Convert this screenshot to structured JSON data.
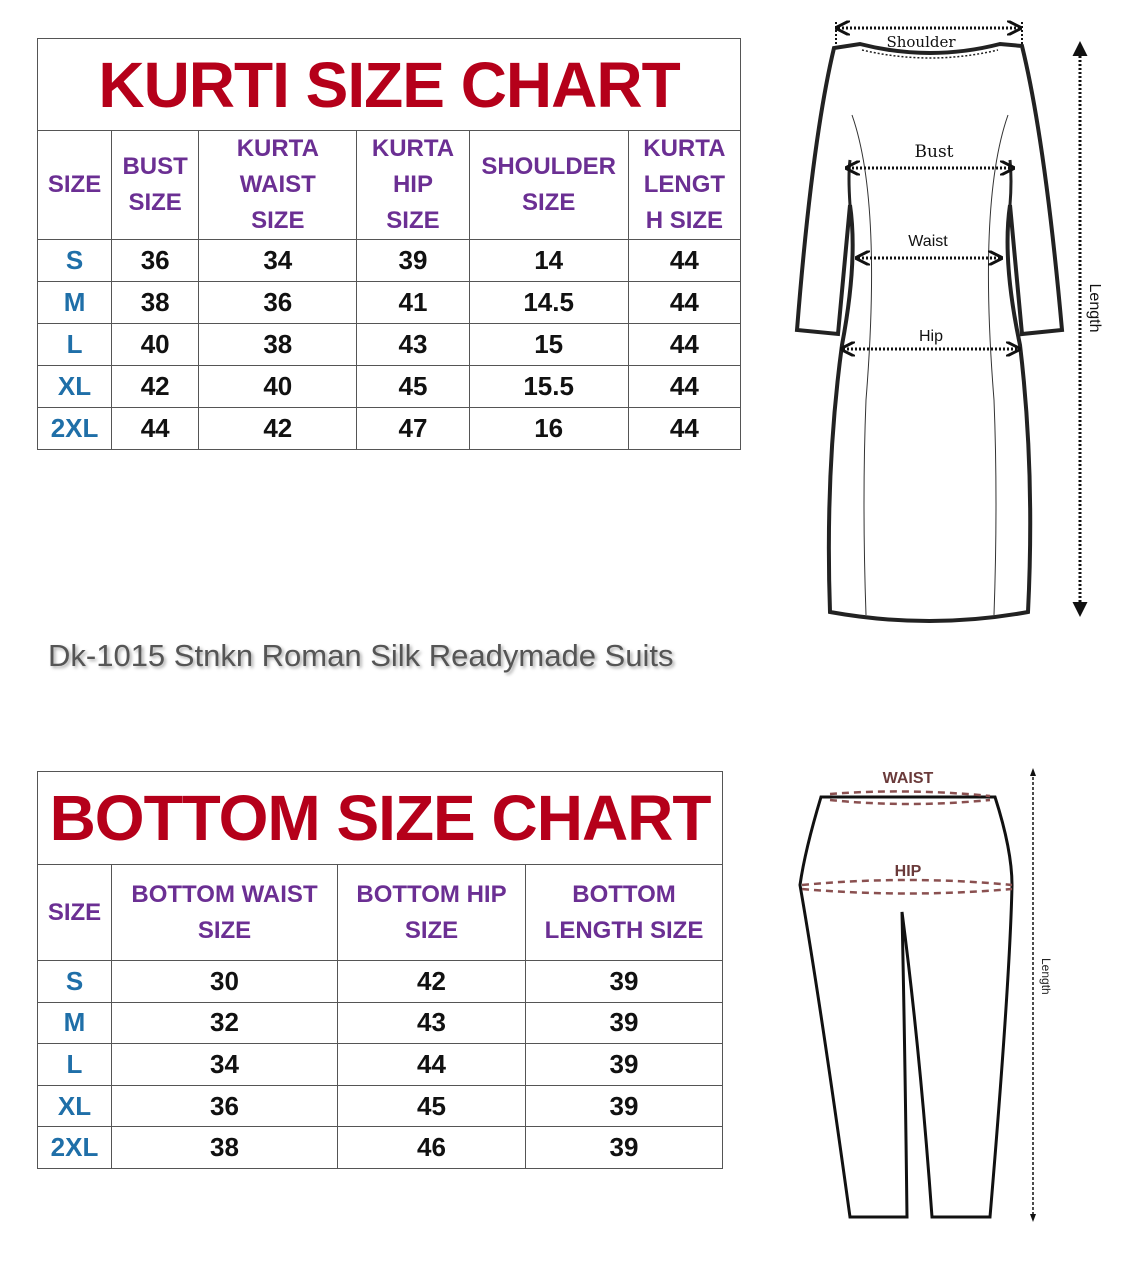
{
  "kurti_chart": {
    "title": "KURTI SIZE CHART",
    "headers": [
      "SIZE",
      "BUST\nSIZE",
      "KURTA\nWAIST\nSIZE",
      "KURTA\nHIP\nSIZE",
      "SHOULDER\nSIZE",
      "KURTA\nLENGT\nH SIZE"
    ],
    "rows": [
      [
        "S",
        "36",
        "34",
        "39",
        "14",
        "44"
      ],
      [
        "M",
        "38",
        "36",
        "41",
        "14.5",
        "44"
      ],
      [
        "L",
        "40",
        "38",
        "43",
        "15",
        "44"
      ],
      [
        "XL",
        "42",
        "40",
        "45",
        "15.5",
        "44"
      ],
      [
        "2XL",
        "44",
        "42",
        "47",
        "16",
        "44"
      ]
    ]
  },
  "kurti_diagram": {
    "shoulder_label": "Shoulder",
    "bust_label": "Bust",
    "waist_label": "Waist",
    "hip_label": "Hip",
    "length_label": "Length"
  },
  "product_name": "Dk-1015 Stnkn Roman Silk Readymade Suits",
  "bottom_chart": {
    "title": "BOTTOM SIZE CHART",
    "headers": [
      "SIZE",
      "BOTTOM WAIST\nSIZE",
      "BOTTOM HIP\nSIZE",
      "BOTTOM\nLENGTH SIZE"
    ],
    "rows": [
      [
        "S",
        "30",
        "42",
        "39"
      ],
      [
        "M",
        "32",
        "43",
        "39"
      ],
      [
        "L",
        "34",
        "44",
        "39"
      ],
      [
        "XL",
        "36",
        "45",
        "39"
      ],
      [
        "2XL",
        "38",
        "46",
        "39"
      ]
    ]
  },
  "bottom_diagram": {
    "waist_label": "WAIST",
    "hip_label": "HIP",
    "length_label": "Length"
  },
  "colors": {
    "title": "#b5001a",
    "header": "#6b2f93",
    "size_label": "#1f6fa8",
    "measure_line": "#8a5050"
  }
}
